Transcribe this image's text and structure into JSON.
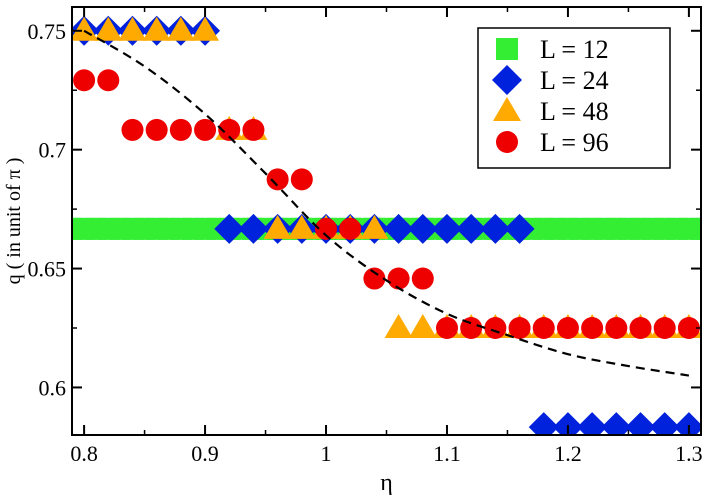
{
  "chart_data": {
    "type": "scatter",
    "xlabel": "η",
    "ylabel": "q ( in unit of π )",
    "xlim": [
      0.79,
      1.31
    ],
    "ylim": [
      0.58,
      0.76
    ],
    "grid": false,
    "legend_position": "top-right",
    "x_ticks": [
      0.8,
      0.9,
      1.0,
      1.1,
      1.2,
      1.3
    ],
    "x_tick_labels": [
      "0.8",
      "0.9",
      "1",
      "1.1",
      "1.2",
      "1.3"
    ],
    "y_ticks": [
      0.6,
      0.65,
      0.7,
      0.75
    ],
    "y_tick_labels": [
      "0.6",
      "0.65",
      "0.7",
      "0.75"
    ],
    "series": [
      {
        "name": "L = 12",
        "marker": "square",
        "color": "#33ee33",
        "x": [
          0.79,
          0.8,
          0.81,
          0.82,
          0.83,
          0.84,
          0.85,
          0.86,
          0.87,
          0.88,
          0.89,
          0.9,
          0.91,
          0.92,
          0.93,
          0.94,
          0.95,
          0.96,
          0.97,
          0.98,
          0.99,
          1.0,
          1.01,
          1.02,
          1.03,
          1.04,
          1.05,
          1.06,
          1.07,
          1.08,
          1.09,
          1.1,
          1.11,
          1.12,
          1.13,
          1.14,
          1.15,
          1.16,
          1.17,
          1.18,
          1.19,
          1.2,
          1.21,
          1.22,
          1.23,
          1.24,
          1.25,
          1.26,
          1.27,
          1.28,
          1.29,
          1.3,
          1.31
        ],
        "y": [
          0.6667,
          0.6667,
          0.6667,
          0.6667,
          0.6667,
          0.6667,
          0.6667,
          0.6667,
          0.6667,
          0.6667,
          0.6667,
          0.6667,
          0.6667,
          0.6667,
          0.6667,
          0.6667,
          0.6667,
          0.6667,
          0.6667,
          0.6667,
          0.6667,
          0.6667,
          0.6667,
          0.6667,
          0.6667,
          0.6667,
          0.6667,
          0.6667,
          0.6667,
          0.6667,
          0.6667,
          0.6667,
          0.6667,
          0.6667,
          0.6667,
          0.6667,
          0.6667,
          0.6667,
          0.6667,
          0.6667,
          0.6667,
          0.6667,
          0.6667,
          0.6667,
          0.6667,
          0.6667,
          0.6667,
          0.6667,
          0.6667,
          0.6667,
          0.6667,
          0.6667,
          0.6667
        ]
      },
      {
        "name": "L = 24",
        "marker": "diamond",
        "color": "#0022dd",
        "x": [
          0.8,
          0.82,
          0.84,
          0.86,
          0.88,
          0.9,
          0.92,
          0.94,
          0.96,
          0.98,
          1.0,
          1.02,
          1.04,
          1.06,
          1.08,
          1.1,
          1.12,
          1.14,
          1.16,
          1.18,
          1.2,
          1.22,
          1.24,
          1.26,
          1.28,
          1.3
        ],
        "y": [
          0.75,
          0.75,
          0.75,
          0.75,
          0.75,
          0.75,
          0.6667,
          0.6667,
          0.6667,
          0.6667,
          0.6667,
          0.6667,
          0.6667,
          0.6667,
          0.6667,
          0.6667,
          0.6667,
          0.6667,
          0.6667,
          0.5833,
          0.5833,
          0.5833,
          0.5833,
          0.5833,
          0.5833,
          0.5833
        ]
      },
      {
        "name": "L = 48",
        "marker": "triangle",
        "color": "#ffaa00",
        "x": [
          0.8,
          0.82,
          0.84,
          0.86,
          0.88,
          0.9,
          0.92,
          0.94,
          0.96,
          0.98,
          1.0,
          1.02,
          1.04,
          1.06,
          1.08,
          1.1,
          1.12,
          1.14,
          1.16,
          1.18,
          1.2,
          1.22,
          1.24,
          1.26,
          1.28,
          1.3
        ],
        "y": [
          0.75,
          0.75,
          0.75,
          0.75,
          0.75,
          0.75,
          0.7083,
          0.7083,
          0.6667,
          0.6667,
          0.6667,
          0.6667,
          0.6667,
          0.625,
          0.625,
          0.625,
          0.625,
          0.625,
          0.625,
          0.625,
          0.625,
          0.625,
          0.625,
          0.625,
          0.625,
          0.625
        ]
      },
      {
        "name": "L = 96",
        "marker": "circle",
        "color": "#ee0000",
        "x": [
          0.8,
          0.82,
          0.84,
          0.86,
          0.88,
          0.9,
          0.92,
          0.94,
          0.96,
          0.98,
          1.0,
          1.02,
          1.04,
          1.06,
          1.08,
          1.1,
          1.12,
          1.14,
          1.16,
          1.18,
          1.2,
          1.22,
          1.24,
          1.26,
          1.28,
          1.3
        ],
        "y": [
          0.7292,
          0.7292,
          0.7083,
          0.7083,
          0.7083,
          0.7083,
          0.7083,
          0.7083,
          0.6875,
          0.6875,
          0.6667,
          0.6667,
          0.6458,
          0.6458,
          0.6458,
          0.625,
          0.625,
          0.625,
          0.625,
          0.625,
          0.625,
          0.625,
          0.625,
          0.625,
          0.625,
          0.625
        ]
      },
      {
        "marker": "none",
        "line": "dashed",
        "color": "#000000",
        "x": [
          0.8,
          0.85,
          0.9,
          0.95,
          1.0,
          1.05,
          1.1,
          1.15,
          1.2,
          1.25,
          1.3
        ],
        "y": [
          0.75,
          0.735,
          0.715,
          0.69,
          0.664,
          0.645,
          0.631,
          0.622,
          0.614,
          0.609,
          0.605
        ]
      }
    ]
  }
}
